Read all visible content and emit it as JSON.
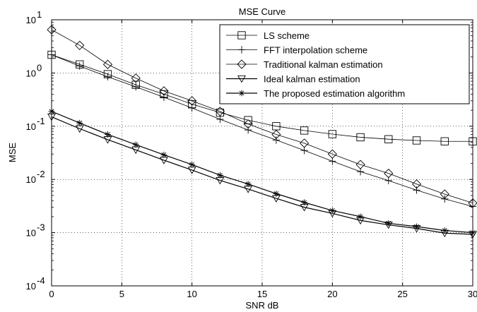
{
  "chart_data": {
    "type": "line",
    "title": "MSE Curve",
    "xlabel": "SNR dB",
    "ylabel": "MSE",
    "xlim": [
      0,
      30
    ],
    "ylim": [
      0.0001,
      10
    ],
    "y_scale": "log",
    "grid": true,
    "legend_position": "top-right",
    "x_ticks": [
      0,
      5,
      10,
      15,
      20,
      25,
      30
    ],
    "x_tick_labels": [
      "0",
      "5",
      "10",
      "15",
      "20",
      "25",
      "30"
    ],
    "y_ticks": [
      0.0001,
      0.001,
      0.01,
      0.1,
      1,
      10
    ],
    "y_tick_labels": [
      {
        "base": "10",
        "exp": "-4"
      },
      {
        "base": "10",
        "exp": "-3"
      },
      {
        "base": "10",
        "exp": "-2"
      },
      {
        "base": "10",
        "exp": "-1"
      },
      {
        "base": "10",
        "exp": "0"
      },
      {
        "base": "10",
        "exp": "1"
      }
    ],
    "x": [
      0,
      2,
      4,
      6,
      8,
      10,
      12,
      14,
      16,
      18,
      20,
      22,
      24,
      26,
      28,
      30
    ],
    "series": [
      {
        "name": "LS scheme",
        "marker": "square",
        "color": "#000000",
        "values": [
          2.2,
          1.45,
          0.95,
          0.6,
          0.4,
          0.26,
          0.18,
          0.13,
          0.1,
          0.083,
          0.071,
          0.062,
          0.057,
          0.054,
          0.052,
          0.052
        ]
      },
      {
        "name": "FFT interpolation scheme",
        "marker": "plus",
        "color": "#000000",
        "values": [
          2.2,
          1.35,
          0.85,
          0.55,
          0.35,
          0.22,
          0.135,
          0.085,
          0.055,
          0.035,
          0.022,
          0.014,
          0.0095,
          0.0063,
          0.0043,
          0.0031
        ]
      },
      {
        "name": "Traditional kalman estimation",
        "marker": "diamond",
        "color": "#000000",
        "values": [
          6.5,
          3.3,
          1.45,
          0.8,
          0.46,
          0.3,
          0.19,
          0.11,
          0.07,
          0.048,
          0.03,
          0.019,
          0.013,
          0.0082,
          0.0053,
          0.0036
        ]
      },
      {
        "name": "Ideal kalman estimation",
        "marker": "triangle-down",
        "color": "#000000",
        "values": [
          0.15,
          0.09,
          0.056,
          0.036,
          0.023,
          0.015,
          0.0096,
          0.0066,
          0.0044,
          0.003,
          0.0023,
          0.0017,
          0.0014,
          0.0012,
          0.00098,
          0.00093
        ]
      },
      {
        "name": "The proposed estimation algorithm",
        "marker": "asterisk",
        "color": "#000000",
        "values": [
          0.19,
          0.115,
          0.07,
          0.045,
          0.029,
          0.019,
          0.012,
          0.0082,
          0.0054,
          0.0037,
          0.0026,
          0.002,
          0.0015,
          0.0013,
          0.0011,
          0.001
        ]
      }
    ]
  }
}
